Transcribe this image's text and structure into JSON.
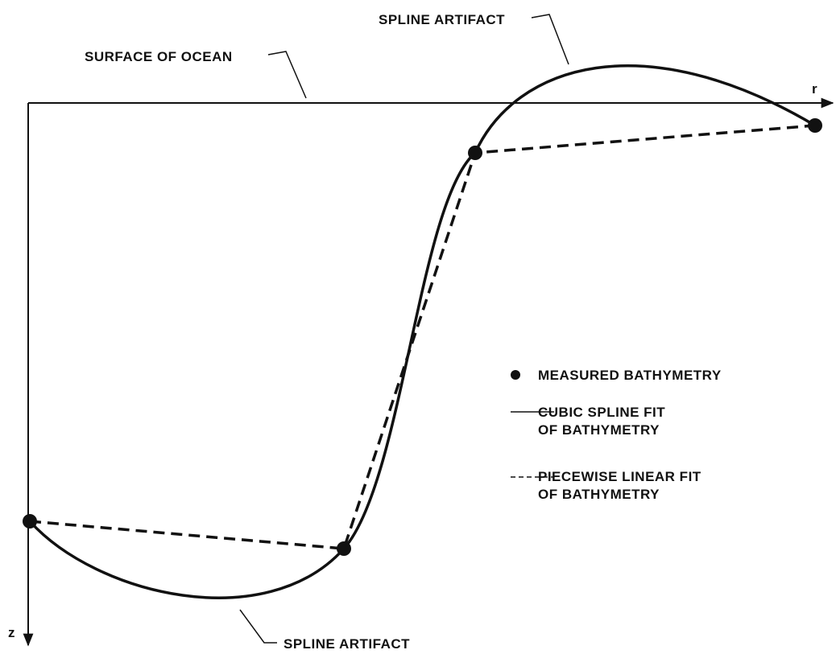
{
  "axes": {
    "x_label": "r",
    "y_label": "z"
  },
  "annotations": {
    "surface": "SURFACE OF OCEAN",
    "artifact_top": "SPLINE ARTIFACT",
    "artifact_bottom": "SPLINE ARTIFACT"
  },
  "legend": [
    {
      "lines": [
        "MEASURED BATHYMETRY"
      ]
    },
    {
      "lines": [
        "CUBIC SPLINE FIT",
        "OF BATHYMETRY"
      ]
    },
    {
      "lines": [
        "PIECEWISE LINEAR FIT",
        "OF BATHYMETRY"
      ]
    }
  ]
}
